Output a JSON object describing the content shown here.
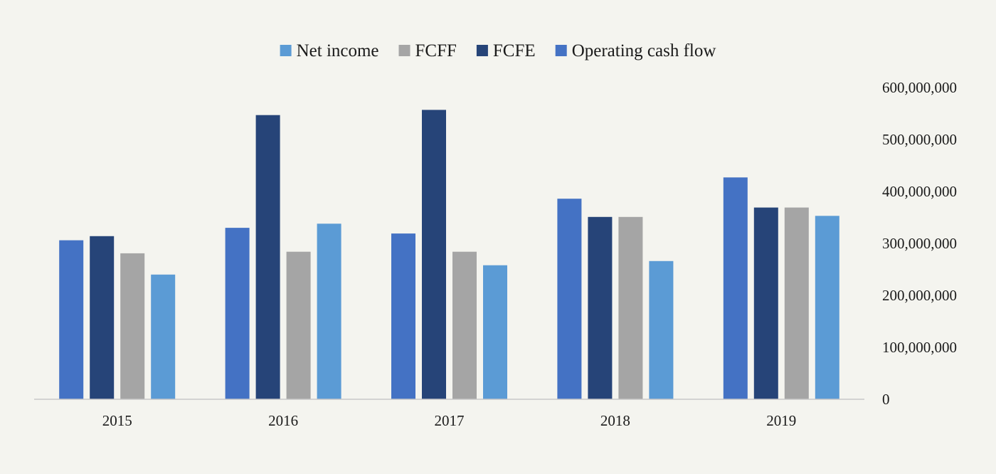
{
  "chart_data": {
    "type": "bar",
    "title": "",
    "xlabel": "",
    "ylabel": "",
    "categories": [
      "2015",
      "2016",
      "2017",
      "2018",
      "2019"
    ],
    "series": [
      {
        "name": "Net income",
        "color": "#5b9bd5",
        "values": [
          240000000,
          338000000,
          258000000,
          266000000,
          353000000
        ]
      },
      {
        "name": "FCFF",
        "color": "#a5a5a5",
        "values": [
          281000000,
          284000000,
          284000000,
          351000000,
          369000000
        ]
      },
      {
        "name": "FCFE",
        "color": "#264478",
        "values": [
          314000000,
          547000000,
          557000000,
          351000000,
          369000000
        ]
      },
      {
        "name": "Operating cash flow",
        "color": "#4472c4",
        "values": [
          306000000,
          330000000,
          319000000,
          386000000,
          427000000
        ]
      }
    ],
    "bar_order": [
      "Operating cash flow",
      "FCFE",
      "FCFF",
      "Net income"
    ],
    "ylim": [
      0,
      600000000
    ],
    "yticks": [
      {
        "value": 0,
        "label": "0"
      },
      {
        "value": 100000000,
        "label": "100,000,000"
      },
      {
        "value": 200000000,
        "label": "200,000,000"
      },
      {
        "value": 300000000,
        "label": "300,000,000"
      },
      {
        "value": 400000000,
        "label": "400,000,000"
      },
      {
        "value": 500000000,
        "label": "500,000,000"
      },
      {
        "value": 600000000,
        "label": "600,000,000"
      }
    ],
    "y_axis_position": "right",
    "legend_position": "top-center",
    "grid": false
  }
}
